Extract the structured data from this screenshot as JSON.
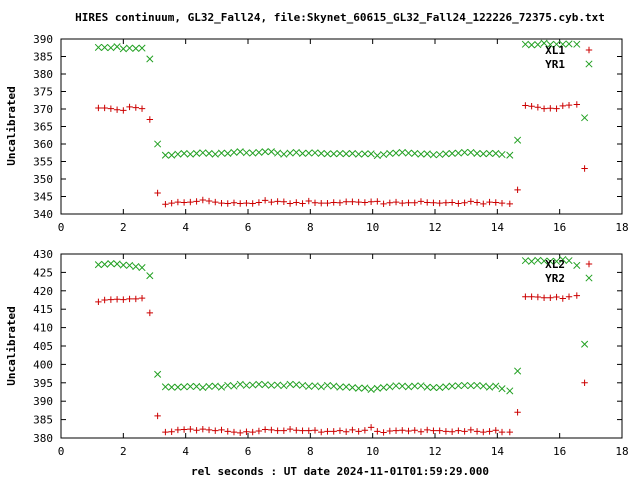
{
  "title": "HIRES continuum, GL32_Fall24, file:Skynet_60615_GL32_Fall24_122226_72375.cyb.txt",
  "xlabel": "rel seconds : UT date 2024-11-01T01:59:29.000",
  "colors": {
    "red": "#cc0000",
    "green": "#22a022",
    "axis": "#000000",
    "grid": "#c8c8c8"
  },
  "chart_data": [
    {
      "type": "scatter",
      "ylabel": "Uncalibrated",
      "xlim": [
        0,
        18
      ],
      "ylim": [
        340,
        390
      ],
      "xticks": [
        0,
        2,
        4,
        6,
        8,
        10,
        12,
        14,
        16,
        18
      ],
      "yticks": [
        340,
        345,
        350,
        355,
        360,
        365,
        370,
        375,
        380,
        385,
        390
      ],
      "legend_position": "top-right",
      "series": [
        {
          "name": "XL1",
          "marker": "plus",
          "color": "#cc0000",
          "x": [
            1.2,
            1.4,
            1.6,
            1.8,
            2.0,
            2.2,
            2.4,
            2.6,
            2.85,
            3.1,
            3.35,
            3.55,
            3.75,
            3.95,
            4.15,
            4.35,
            4.55,
            4.75,
            4.95,
            5.15,
            5.35,
            5.55,
            5.75,
            5.95,
            6.15,
            6.35,
            6.55,
            6.75,
            6.95,
            7.15,
            7.35,
            7.55,
            7.75,
            7.95,
            8.15,
            8.35,
            8.55,
            8.75,
            8.95,
            9.15,
            9.35,
            9.55,
            9.75,
            9.95,
            10.15,
            10.35,
            10.55,
            10.75,
            10.95,
            11.15,
            11.35,
            11.55,
            11.75,
            11.95,
            12.15,
            12.35,
            12.55,
            12.75,
            12.95,
            13.15,
            13.35,
            13.55,
            13.75,
            13.95,
            14.15,
            14.4,
            14.65,
            14.9,
            15.1,
            15.3,
            15.5,
            15.7,
            15.9,
            16.1,
            16.3,
            16.55,
            16.8
          ],
          "y": [
            370.3,
            370.3,
            370.1,
            369.8,
            369.6,
            370.6,
            370.4,
            370.1,
            367.0,
            346.0,
            342.8,
            343.1,
            343.4,
            343.3,
            343.4,
            343.6,
            344.0,
            343.7,
            343.4,
            343.1,
            343.0,
            343.2,
            343.0,
            343.1,
            343.0,
            343.3,
            343.9,
            343.4,
            343.6,
            343.5,
            343.0,
            343.3,
            343.0,
            343.7,
            343.2,
            343.1,
            343.1,
            343.3,
            343.2,
            343.5,
            343.5,
            343.4,
            343.3,
            343.5,
            343.6,
            342.9,
            343.2,
            343.4,
            343.1,
            343.2,
            343.2,
            343.6,
            343.3,
            343.2,
            343.1,
            343.2,
            343.3,
            343.0,
            343.2,
            343.6,
            343.3,
            342.9,
            343.4,
            343.3,
            343.1,
            342.9,
            346.9,
            371.0,
            370.8,
            370.5,
            370.1,
            370.2,
            370.1,
            370.9,
            371.1,
            371.3,
            353.0
          ]
        },
        {
          "name": "YR1",
          "marker": "cross",
          "color": "#22a022",
          "x": [
            1.2,
            1.4,
            1.6,
            1.8,
            2.0,
            2.2,
            2.4,
            2.6,
            2.85,
            3.1,
            3.35,
            3.55,
            3.75,
            3.95,
            4.15,
            4.35,
            4.55,
            4.75,
            4.95,
            5.15,
            5.35,
            5.55,
            5.75,
            5.95,
            6.15,
            6.35,
            6.55,
            6.75,
            6.95,
            7.15,
            7.35,
            7.55,
            7.75,
            7.95,
            8.15,
            8.35,
            8.55,
            8.75,
            8.95,
            9.15,
            9.35,
            9.55,
            9.75,
            9.95,
            10.15,
            10.35,
            10.55,
            10.75,
            10.95,
            11.15,
            11.35,
            11.55,
            11.75,
            11.95,
            12.15,
            12.35,
            12.55,
            12.75,
            12.95,
            13.15,
            13.35,
            13.55,
            13.75,
            13.95,
            14.15,
            14.4,
            14.65,
            14.9,
            15.1,
            15.3,
            15.5,
            15.7,
            15.9,
            16.1,
            16.3,
            16.55,
            16.8
          ],
          "y": [
            387.6,
            387.6,
            387.5,
            387.8,
            387.2,
            387.4,
            387.3,
            387.4,
            384.3,
            360.0,
            356.8,
            356.8,
            357.1,
            357.3,
            357.1,
            357.3,
            357.5,
            357.3,
            357.1,
            357.4,
            357.3,
            357.6,
            357.8,
            357.5,
            357.4,
            357.6,
            357.8,
            357.8,
            357.4,
            357.1,
            357.4,
            357.6,
            357.3,
            357.4,
            357.5,
            357.3,
            357.2,
            357.2,
            357.3,
            357.2,
            357.3,
            357.1,
            357.2,
            357.2,
            356.7,
            357.0,
            357.3,
            357.4,
            357.6,
            357.4,
            357.3,
            357.1,
            357.2,
            356.9,
            357.0,
            357.2,
            357.3,
            357.4,
            357.6,
            357.6,
            357.3,
            357.2,
            357.3,
            357.3,
            357.0,
            356.8,
            361.1,
            388.5,
            388.3,
            388.4,
            388.8,
            388.4,
            388.5,
            388.5,
            388.6,
            388.5,
            367.5
          ]
        }
      ]
    },
    {
      "type": "scatter",
      "ylabel": "Uncalibrated",
      "xlim": [
        0,
        18
      ],
      "ylim": [
        380,
        430
      ],
      "xticks": [
        0,
        2,
        4,
        6,
        8,
        10,
        12,
        14,
        16,
        18
      ],
      "yticks": [
        380,
        385,
        390,
        395,
        400,
        405,
        410,
        415,
        420,
        425,
        430
      ],
      "legend_position": "top-right",
      "series": [
        {
          "name": "XL2",
          "marker": "plus",
          "color": "#cc0000",
          "x": [
            1.2,
            1.4,
            1.6,
            1.8,
            2.0,
            2.2,
            2.4,
            2.6,
            2.85,
            3.1,
            3.35,
            3.55,
            3.75,
            3.95,
            4.15,
            4.35,
            4.55,
            4.75,
            4.95,
            5.15,
            5.35,
            5.55,
            5.75,
            5.95,
            6.15,
            6.35,
            6.55,
            6.75,
            6.95,
            7.15,
            7.35,
            7.55,
            7.75,
            7.95,
            8.15,
            8.35,
            8.55,
            8.75,
            8.95,
            9.15,
            9.35,
            9.55,
            9.75,
            9.95,
            10.15,
            10.35,
            10.55,
            10.75,
            10.95,
            11.15,
            11.35,
            11.55,
            11.75,
            11.95,
            12.15,
            12.35,
            12.55,
            12.75,
            12.95,
            13.15,
            13.35,
            13.55,
            13.75,
            13.95,
            14.15,
            14.4,
            14.65,
            14.9,
            15.1,
            15.3,
            15.5,
            15.7,
            15.9,
            16.1,
            16.3,
            16.55,
            16.8
          ],
          "y": [
            417.0,
            417.5,
            417.6,
            417.7,
            417.6,
            417.8,
            417.8,
            418.0,
            414.0,
            386.0,
            381.6,
            381.7,
            382.2,
            382.3,
            382.4,
            382.1,
            382.4,
            382.2,
            382.0,
            382.2,
            381.8,
            381.6,
            381.4,
            381.7,
            381.6,
            381.9,
            382.3,
            382.2,
            382.0,
            382.0,
            382.4,
            382.1,
            382.0,
            382.0,
            382.1,
            381.6,
            381.8,
            381.8,
            382.0,
            381.7,
            382.2,
            381.8,
            382.1,
            382.9,
            381.8,
            381.5,
            381.9,
            382.0,
            382.1,
            381.9,
            382.1,
            381.7,
            382.2,
            382.0,
            382.0,
            381.8,
            381.7,
            382.0,
            381.8,
            382.2,
            381.8,
            381.6,
            381.8,
            382.1,
            381.6,
            381.6,
            387.0,
            418.4,
            418.4,
            418.3,
            418.1,
            418.1,
            418.3,
            417.9,
            418.4,
            418.7,
            395.0
          ]
        },
        {
          "name": "YR2",
          "marker": "cross",
          "color": "#22a022",
          "x": [
            1.2,
            1.4,
            1.6,
            1.8,
            2.0,
            2.2,
            2.4,
            2.6,
            2.85,
            3.1,
            3.35,
            3.55,
            3.75,
            3.95,
            4.15,
            4.35,
            4.55,
            4.75,
            4.95,
            5.15,
            5.35,
            5.55,
            5.75,
            5.95,
            6.15,
            6.35,
            6.55,
            6.75,
            6.95,
            7.15,
            7.35,
            7.55,
            7.75,
            7.95,
            8.15,
            8.35,
            8.55,
            8.75,
            8.95,
            9.15,
            9.35,
            9.55,
            9.75,
            9.95,
            10.15,
            10.35,
            10.55,
            10.75,
            10.95,
            11.15,
            11.35,
            11.55,
            11.75,
            11.95,
            12.15,
            12.35,
            12.55,
            12.75,
            12.95,
            13.15,
            13.35,
            13.55,
            13.75,
            13.95,
            14.15,
            14.4,
            14.65,
            14.9,
            15.1,
            15.3,
            15.5,
            15.7,
            15.9,
            16.1,
            16.3,
            16.55,
            16.8
          ],
          "y": [
            427.1,
            427.2,
            427.4,
            427.3,
            427.0,
            426.9,
            426.6,
            426.3,
            424.1,
            397.3,
            393.9,
            393.8,
            393.8,
            393.9,
            394.0,
            394.0,
            393.7,
            394.0,
            394.1,
            393.8,
            394.3,
            394.1,
            394.6,
            394.3,
            394.4,
            394.6,
            394.5,
            394.3,
            394.4,
            394.2,
            394.6,
            394.5,
            394.3,
            394.0,
            394.2,
            393.9,
            394.3,
            394.1,
            393.8,
            393.9,
            393.7,
            393.5,
            393.6,
            393.2,
            393.5,
            393.7,
            393.9,
            394.2,
            394.1,
            393.9,
            394.1,
            394.2,
            393.8,
            393.7,
            393.7,
            393.9,
            394.1,
            394.2,
            394.3,
            394.2,
            394.3,
            394.1,
            393.8,
            394.1,
            393.4,
            392.8,
            398.2,
            428.2,
            428.0,
            428.3,
            428.1,
            428.0,
            428.0,
            428.5,
            428.2,
            426.9,
            405.5
          ]
        }
      ]
    }
  ]
}
